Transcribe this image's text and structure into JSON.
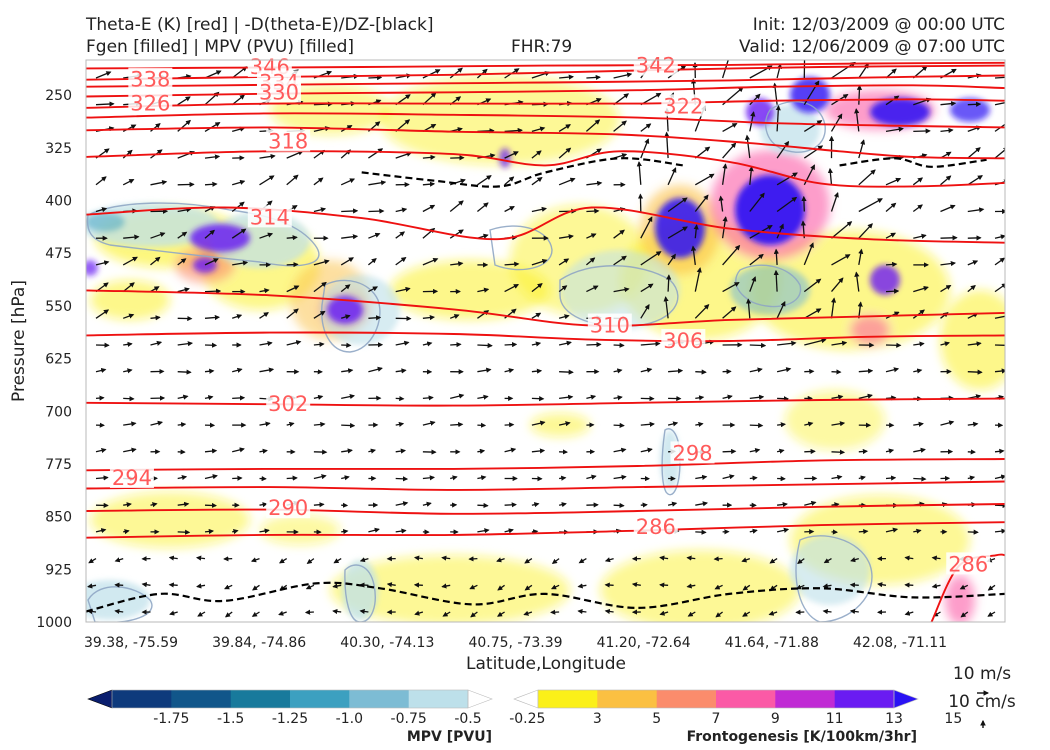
{
  "header": {
    "title_left_1": "Theta-E (K) [red] | -D(theta-E)/DZ-[black]",
    "title_left_2": "Fgen [filled] | MPV (PVU) [filled]",
    "fhr": "FHR:79",
    "init": "Init: 12/03/2009 @ 00:00 UTC",
    "valid": "Valid: 12/06/2009 @ 07:00 UTC"
  },
  "chart_data": {
    "type": "cross-section",
    "xlabel": "Latitude,Longitude",
    "ylabel": "Pressure [hPa]",
    "x_ticks": [
      "39.38, -75.59",
      "39.84, -74.86",
      "40.30, -74.13",
      "40.75, -73.39",
      "41.20, -72.64",
      "41.64, -71.88",
      "42.08, -71.11"
    ],
    "y_ticks": [
      "250",
      "325",
      "400",
      "475",
      "550",
      "625",
      "700",
      "775",
      "850",
      "925",
      "1000"
    ],
    "y_range": [
      200,
      1000
    ],
    "y_scale": "linear, inverted",
    "x_range": [
      0,
      1
    ],
    "theta_e_contours": [
      {
        "label": "346",
        "pressure": 210,
        "x": 0.2,
        "points": [
          [
            0,
            212
          ],
          [
            0.15,
            211
          ],
          [
            0.3,
            210
          ],
          [
            0.5,
            208
          ],
          [
            0.7,
            207
          ],
          [
            0.85,
            205
          ],
          [
            1,
            204
          ]
        ]
      },
      {
        "label": "342",
        "pressure": 208,
        "x": 0.62,
        "points": [
          [
            0,
            228
          ],
          [
            0.2,
            224
          ],
          [
            0.4,
            221
          ],
          [
            0.6,
            215
          ],
          [
            0.8,
            210
          ],
          [
            1,
            208
          ]
        ]
      },
      {
        "label": "338",
        "pressure": 228,
        "x": 0.07,
        "points": [
          [
            0,
            238
          ],
          [
            0.15,
            236
          ],
          [
            0.3,
            234
          ],
          [
            0.5,
            232
          ],
          [
            0.7,
            229
          ],
          [
            0.85,
            225
          ],
          [
            1,
            222
          ]
        ]
      },
      {
        "label": "334",
        "pressure": 232,
        "x": 0.21,
        "points": [
          [
            0,
            252
          ],
          [
            0.2,
            248
          ],
          [
            0.4,
            246
          ],
          [
            0.6,
            243
          ],
          [
            0.75,
            238
          ],
          [
            0.9,
            236
          ],
          [
            1,
            240
          ]
        ]
      },
      {
        "label": "330",
        "pressure": 246,
        "x": 0.21,
        "points": [
          [
            0,
            268
          ],
          [
            0.2,
            262
          ],
          [
            0.4,
            262
          ],
          [
            0.6,
            262
          ],
          [
            0.75,
            258
          ],
          [
            0.9,
            256
          ],
          [
            1,
            258
          ]
        ]
      },
      {
        "label": "326",
        "pressure": 262,
        "x": 0.07,
        "points": [
          [
            0,
            282
          ],
          [
            0.2,
            276
          ],
          [
            0.4,
            278
          ],
          [
            0.6,
            282
          ],
          [
            0.75,
            290
          ],
          [
            0.9,
            294
          ],
          [
            1,
            296
          ]
        ]
      },
      {
        "label": "322",
        "pressure": 266,
        "x": 0.65,
        "points": [
          [
            0,
            300
          ],
          [
            0.2,
            296
          ],
          [
            0.4,
            302
          ],
          [
            0.58,
            306
          ],
          [
            0.72,
            318
          ],
          [
            0.82,
            330
          ],
          [
            0.9,
            338
          ],
          [
            1,
            340
          ]
        ]
      },
      {
        "label": "318",
        "pressure": 316,
        "x": 0.22,
        "points": [
          [
            0,
            338
          ],
          [
            0.2,
            330
          ],
          [
            0.4,
            334
          ],
          [
            0.5,
            350
          ],
          [
            0.58,
            330
          ],
          [
            0.7,
            345
          ],
          [
            0.8,
            376
          ],
          [
            0.9,
            380
          ],
          [
            1,
            375
          ]
        ]
      },
      {
        "label": "314",
        "pressure": 424,
        "x": 0.2,
        "points": [
          [
            0,
            420
          ],
          [
            0.15,
            410
          ],
          [
            0.3,
            425
          ],
          [
            0.45,
            455
          ],
          [
            0.55,
            410
          ],
          [
            0.7,
            440
          ],
          [
            0.85,
            455
          ],
          [
            1,
            460
          ]
        ]
      },
      {
        "label": "310",
        "pressure": 578,
        "x": 0.57,
        "points": [
          [
            0,
            528
          ],
          [
            0.2,
            535
          ],
          [
            0.4,
            555
          ],
          [
            0.55,
            578
          ],
          [
            0.7,
            570
          ],
          [
            0.85,
            565
          ],
          [
            1,
            560
          ]
        ]
      },
      {
        "label": "306",
        "pressure": 600,
        "x": 0.65,
        "points": [
          [
            0,
            592
          ],
          [
            0.2,
            588
          ],
          [
            0.4,
            590
          ],
          [
            0.55,
            598
          ],
          [
            0.7,
            600
          ],
          [
            0.85,
            594
          ],
          [
            1,
            592
          ]
        ]
      },
      {
        "label": "302",
        "pressure": 690,
        "x": 0.22,
        "points": [
          [
            0,
            688
          ],
          [
            0.2,
            690
          ],
          [
            0.4,
            692
          ],
          [
            0.6,
            688
          ],
          [
            0.8,
            684
          ],
          [
            1,
            682
          ]
        ]
      },
      {
        "label": "298",
        "pressure": 760,
        "x": 0.66,
        "points": [
          [
            0,
            784
          ],
          [
            0.2,
            782
          ],
          [
            0.4,
            782
          ],
          [
            0.6,
            778
          ],
          [
            0.8,
            770
          ],
          [
            1,
            768
          ]
        ]
      },
      {
        "label": "294",
        "pressure": 795,
        "x": 0.05,
        "points": [
          [
            0,
            810
          ],
          [
            0.2,
            808
          ],
          [
            0.4,
            812
          ],
          [
            0.6,
            808
          ],
          [
            0.8,
            804
          ],
          [
            1,
            800
          ]
        ]
      },
      {
        "label": "290",
        "pressure": 838,
        "x": 0.22,
        "points": [
          [
            0,
            842
          ],
          [
            0.2,
            840
          ],
          [
            0.4,
            846
          ],
          [
            0.6,
            842
          ],
          [
            0.8,
            836
          ],
          [
            1,
            832
          ]
        ]
      },
      {
        "label": "286",
        "pressure": 865,
        "x": 0.62,
        "points": [
          [
            0,
            880
          ],
          [
            0.2,
            876
          ],
          [
            0.4,
            876
          ],
          [
            0.6,
            870
          ],
          [
            0.8,
            862
          ],
          [
            1,
            858
          ]
        ]
      },
      {
        "label": "286",
        "pressure": 918,
        "x": 0.96,
        "points": [
          [
            0.92,
            1000
          ],
          [
            0.95,
            920
          ],
          [
            0.99,
            905
          ],
          [
            1,
            905
          ]
        ]
      }
    ],
    "dtheta_contours": [
      {
        "points": [
          [
            0,
            985
          ],
          [
            0.08,
            960
          ],
          [
            0.15,
            970
          ],
          [
            0.25,
            945
          ],
          [
            0.32,
            952
          ],
          [
            0.42,
            975
          ],
          [
            0.5,
            960
          ],
          [
            0.6,
            980
          ],
          [
            0.7,
            960
          ],
          [
            0.8,
            952
          ],
          [
            0.9,
            965
          ],
          [
            1,
            960
          ]
        ]
      },
      {
        "points": [
          [
            0.3,
            360
          ],
          [
            0.38,
            372
          ],
          [
            0.45,
            380
          ],
          [
            0.5,
            360
          ],
          [
            0.58,
            340
          ],
          [
            0.65,
            350
          ]
        ]
      },
      {
        "points": [
          [
            0.82,
            350
          ],
          [
            0.88,
            340
          ],
          [
            0.92,
            352
          ],
          [
            0.98,
            342
          ]
        ]
      }
    ],
    "mpv_colorbar": {
      "title": "MPV [PVU]",
      "levels": [
        "-1.75",
        "-1.5",
        "-1.25",
        "-1.0",
        "-0.75",
        "-0.5",
        "-0.25"
      ],
      "colors": [
        "#0a1e6e",
        "#0e3a7c",
        "#11568a",
        "#187a9c",
        "#3ca0c0",
        "#7dbcd4",
        "#bde0ea",
        "#ffffff"
      ]
    },
    "fgen_colorbar": {
      "title": "Frontogenesis [K/100km/3hr]",
      "levels": [
        "3",
        "5",
        "7",
        "9",
        "11",
        "13",
        "15"
      ],
      "colors": [
        "#ffffff",
        "#fbf019",
        "#fbc042",
        "#fb8c6c",
        "#fb5aa6",
        "#c02bd4",
        "#6a1cf2",
        "#2a12f4"
      ]
    },
    "wind_reference": {
      "horizontal": "10 m/s",
      "vertical": "10 cm/s"
    }
  }
}
